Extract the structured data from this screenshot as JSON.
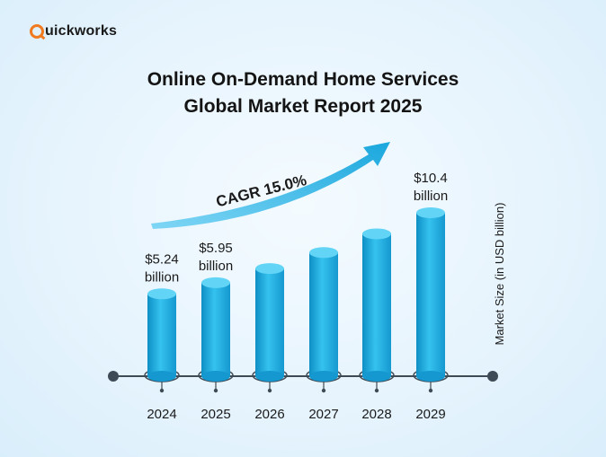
{
  "logo": {
    "text": "uickworks",
    "icon": "q-logo-icon",
    "color": "#f07a1f"
  },
  "title_line1": "Online On-Demand Home Services",
  "title_line2": "Global Market Report 2025",
  "cagr_label": "CAGR 15.0%",
  "colors": {
    "bar": "#22b5e8",
    "bar_light": "#62d4f6",
    "bar_dark": "#0e8fc5",
    "arrow": "#1aa7dd",
    "axis": "#3e4a55"
  },
  "chart_data": {
    "type": "bar",
    "categories": [
      "2024",
      "2025",
      "2026",
      "2027",
      "2028",
      "2029"
    ],
    "series": [
      {
        "values": [
          5.24,
          5.95,
          6.85,
          7.87,
          9.06,
          10.4
        ]
      }
    ],
    "data_labels": [
      "$5.24",
      "$5.95",
      "",
      "",
      "",
      "$10.4"
    ],
    "data_label_units": [
      "billion",
      "billion",
      "",
      "",
      "",
      "billion"
    ],
    "ylabel": "Market Size (in USD billion)",
    "xlabel": "",
    "ylim": [
      0,
      11
    ],
    "grid": false
  }
}
